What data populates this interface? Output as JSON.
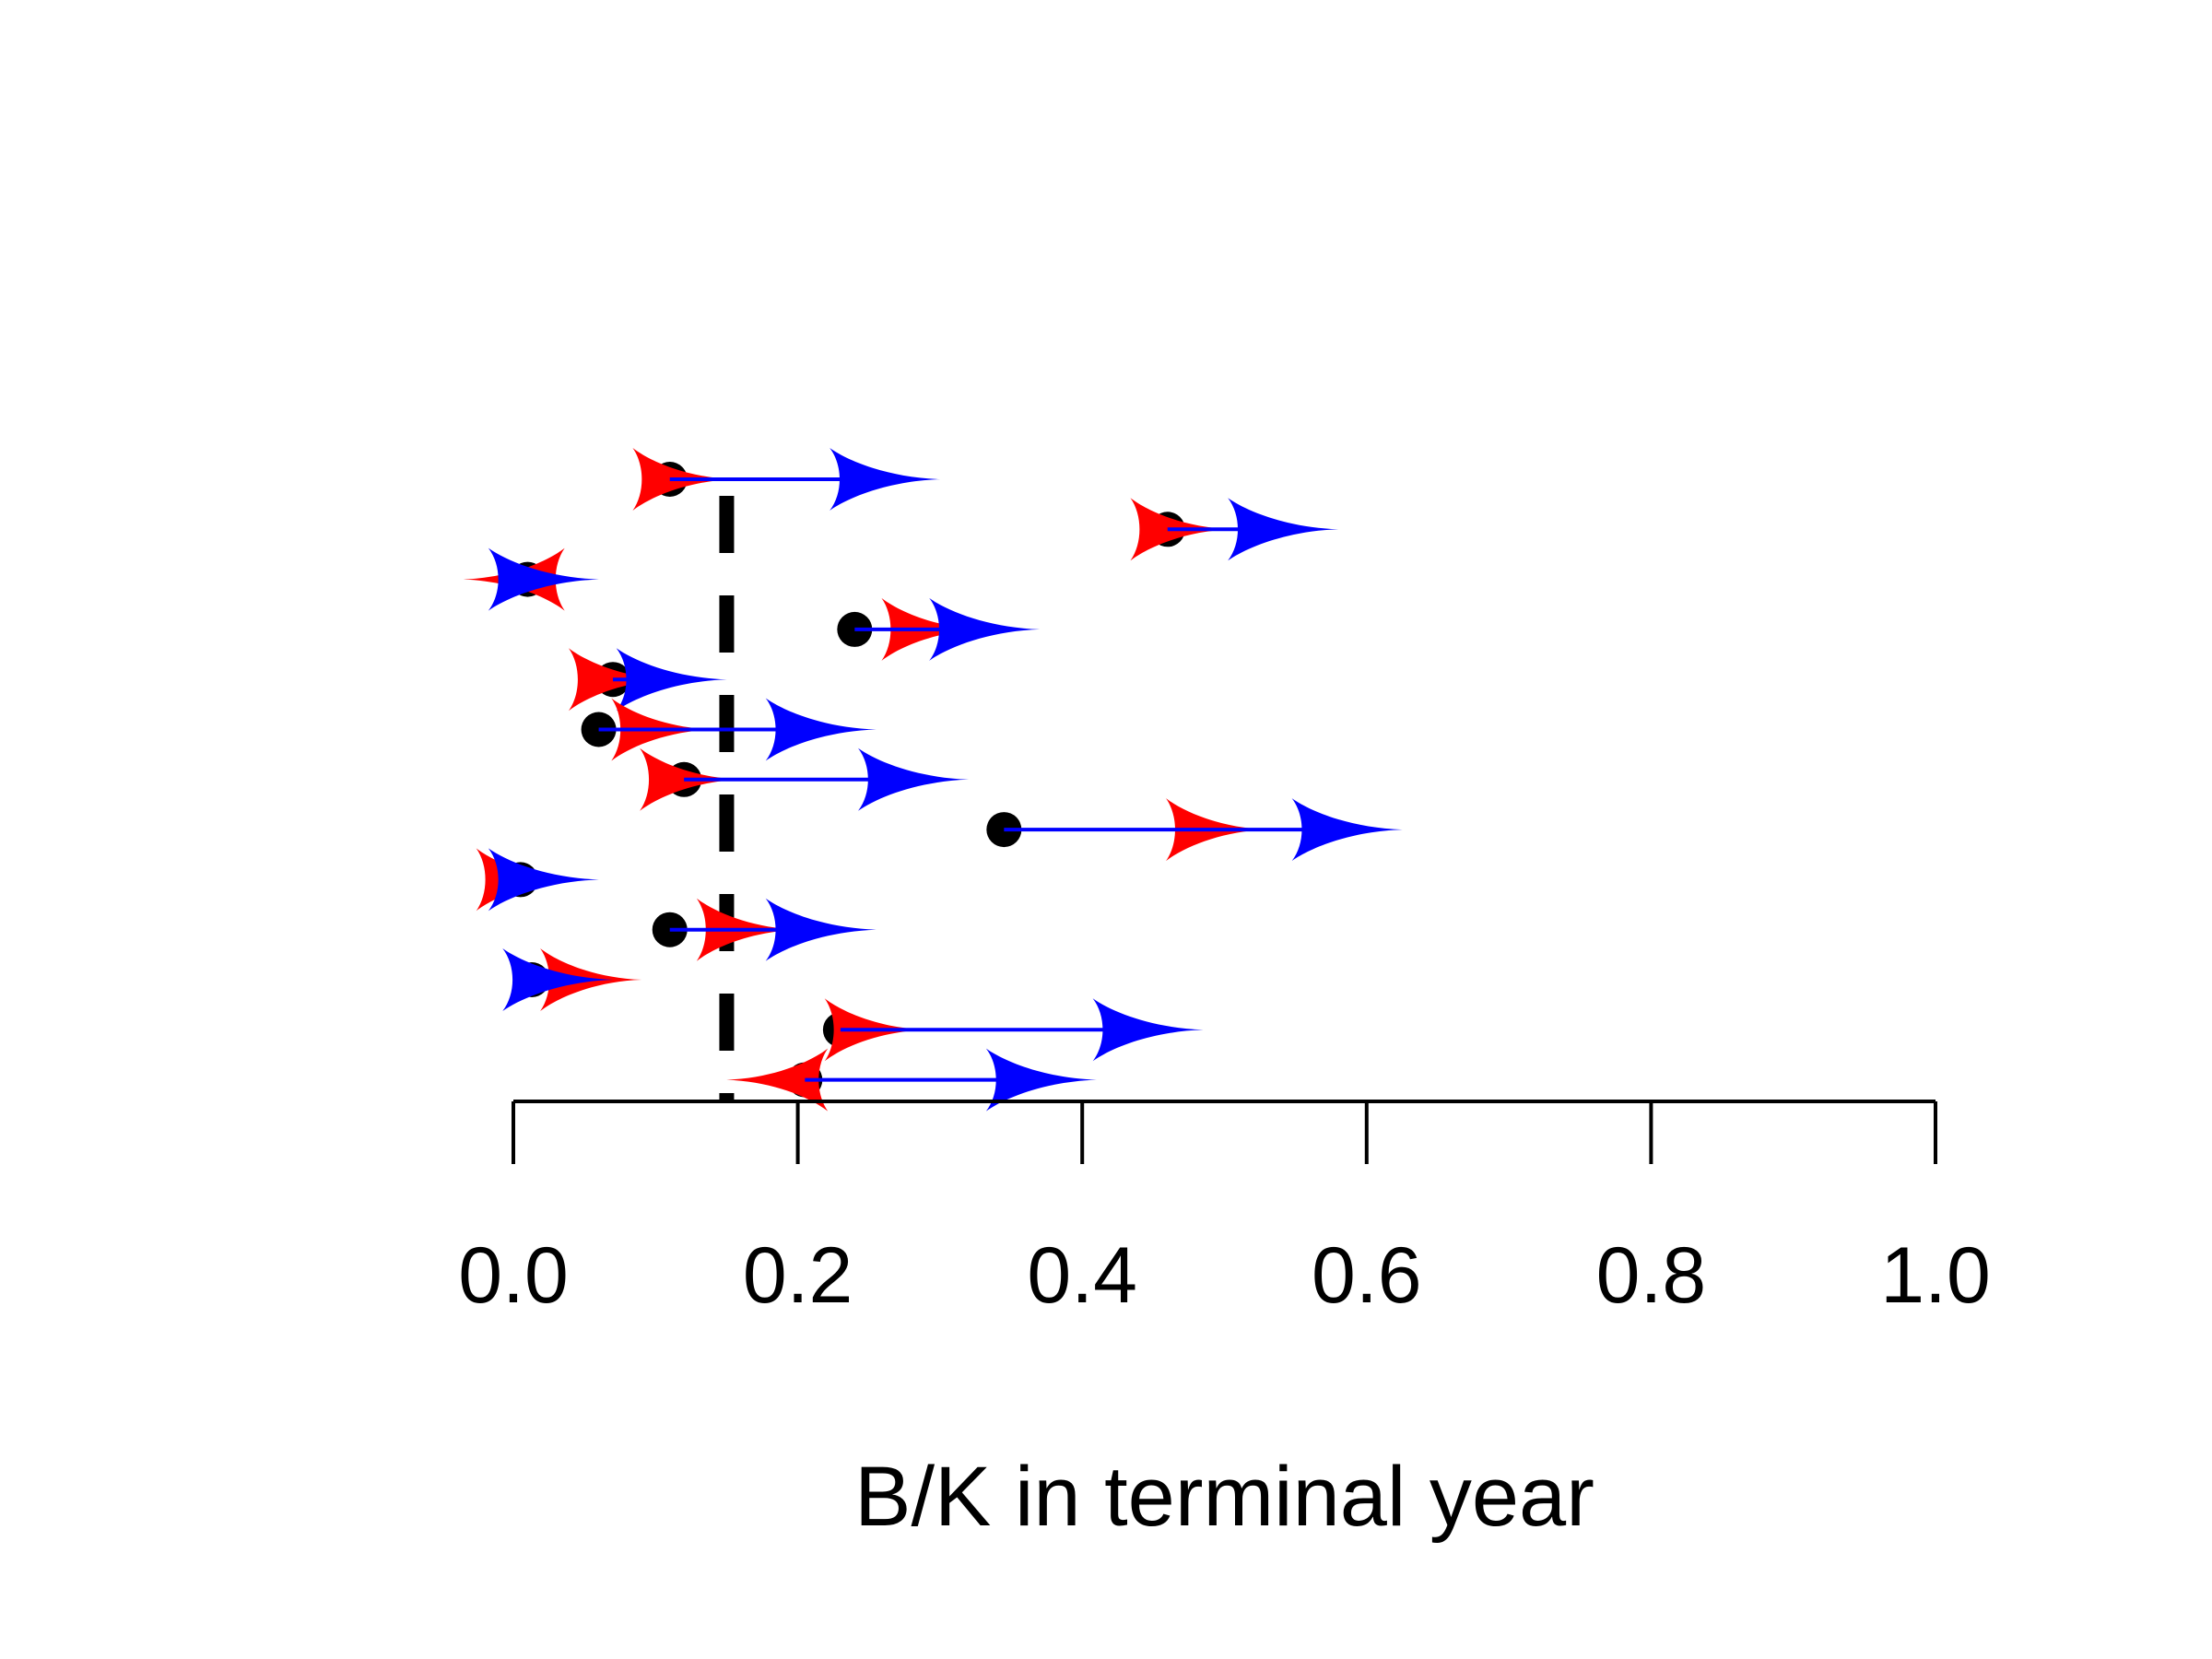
{
  "chart_data": {
    "type": "scatter",
    "xlabel": "B/K in terminal year",
    "xlim": [
      0,
      1
    ],
    "xticks": [
      "0.0",
      "0.2",
      "0.4",
      "0.6",
      "0.8",
      "1.0"
    ],
    "reference_line_x": 0.15,
    "colors": {
      "start": "#000000",
      "mid": "#ff0000",
      "end": "#0000ff"
    },
    "rows": [
      {
        "start": 0.11,
        "mid": 0.115,
        "end": 0.26
      },
      {
        "start": 0.46,
        "mid": 0.465,
        "end": 0.54
      },
      {
        "start": 0.01,
        "mid": 0.005,
        "end": 0.02
      },
      {
        "start": 0.24,
        "mid": 0.29,
        "end": 0.33
      },
      {
        "start": 0.07,
        "mid": 0.07,
        "end": 0.11
      },
      {
        "start": 0.06,
        "mid": 0.1,
        "end": 0.215
      },
      {
        "start": 0.12,
        "mid": 0.12,
        "end": 0.28
      },
      {
        "start": 0.345,
        "mid": 0.49,
        "end": 0.585
      },
      {
        "start": 0.005,
        "mid": 0.005,
        "end": 0.02
      },
      {
        "start": 0.11,
        "mid": 0.16,
        "end": 0.215
      },
      {
        "start": 0.013,
        "mid": 0.05,
        "end": 0.03
      },
      {
        "start": 0.23,
        "mid": 0.25,
        "end": 0.445
      },
      {
        "start": 0.205,
        "mid": 0.19,
        "end": 0.37
      }
    ]
  }
}
